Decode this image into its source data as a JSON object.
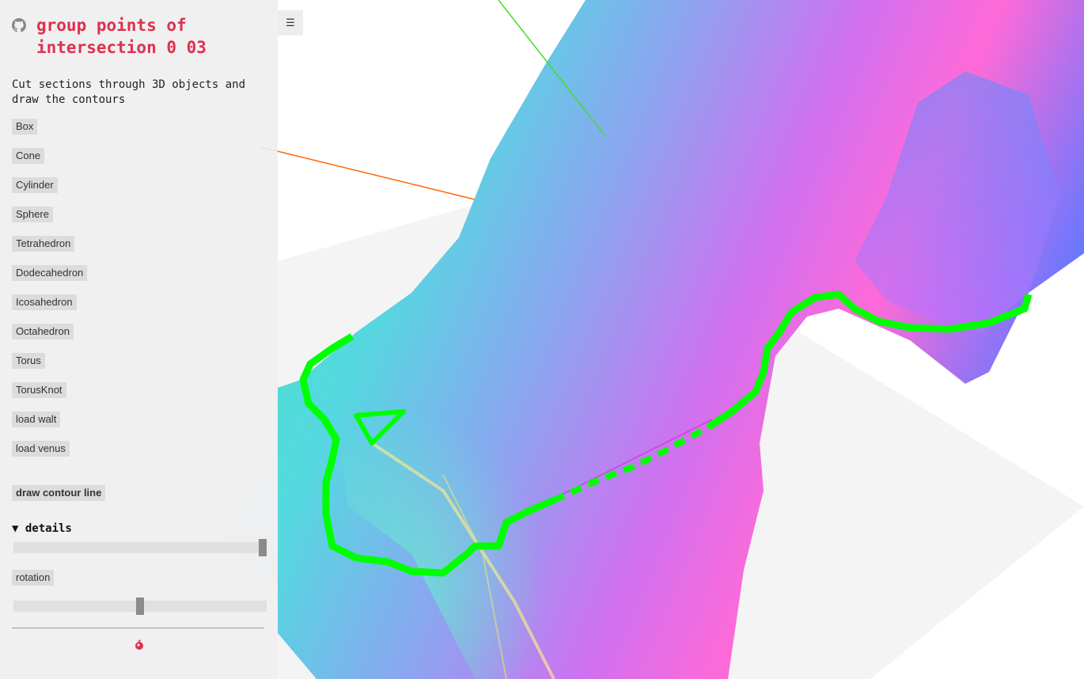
{
  "header": {
    "title": "group points of intersection 0 03",
    "description": "Cut sections through 3D objects and draw the contours"
  },
  "shapes": [
    {
      "label": "Box"
    },
    {
      "label": "Cone"
    },
    {
      "label": "Cylinder"
    },
    {
      "label": "Sphere"
    },
    {
      "label": "Tetrahedron"
    },
    {
      "label": "Dodecahedron"
    },
    {
      "label": "Icosahedron"
    },
    {
      "label": "Octahedron"
    },
    {
      "label": "Torus"
    },
    {
      "label": "TorusKnot"
    },
    {
      "label": "load walt"
    },
    {
      "label": "load venus"
    }
  ],
  "controls": {
    "draw_contour_label": "draw contour line",
    "details_label": "▼ details",
    "rotation_label": "rotation",
    "slider1_value": 1.0,
    "slider2_value": 0.5
  },
  "menu": {
    "icon_glyph": "☰"
  },
  "colors": {
    "title": "#e0304e",
    "contour": "#00ff00",
    "axis_x": "#ff6600",
    "axis_y": "#33dd22"
  }
}
